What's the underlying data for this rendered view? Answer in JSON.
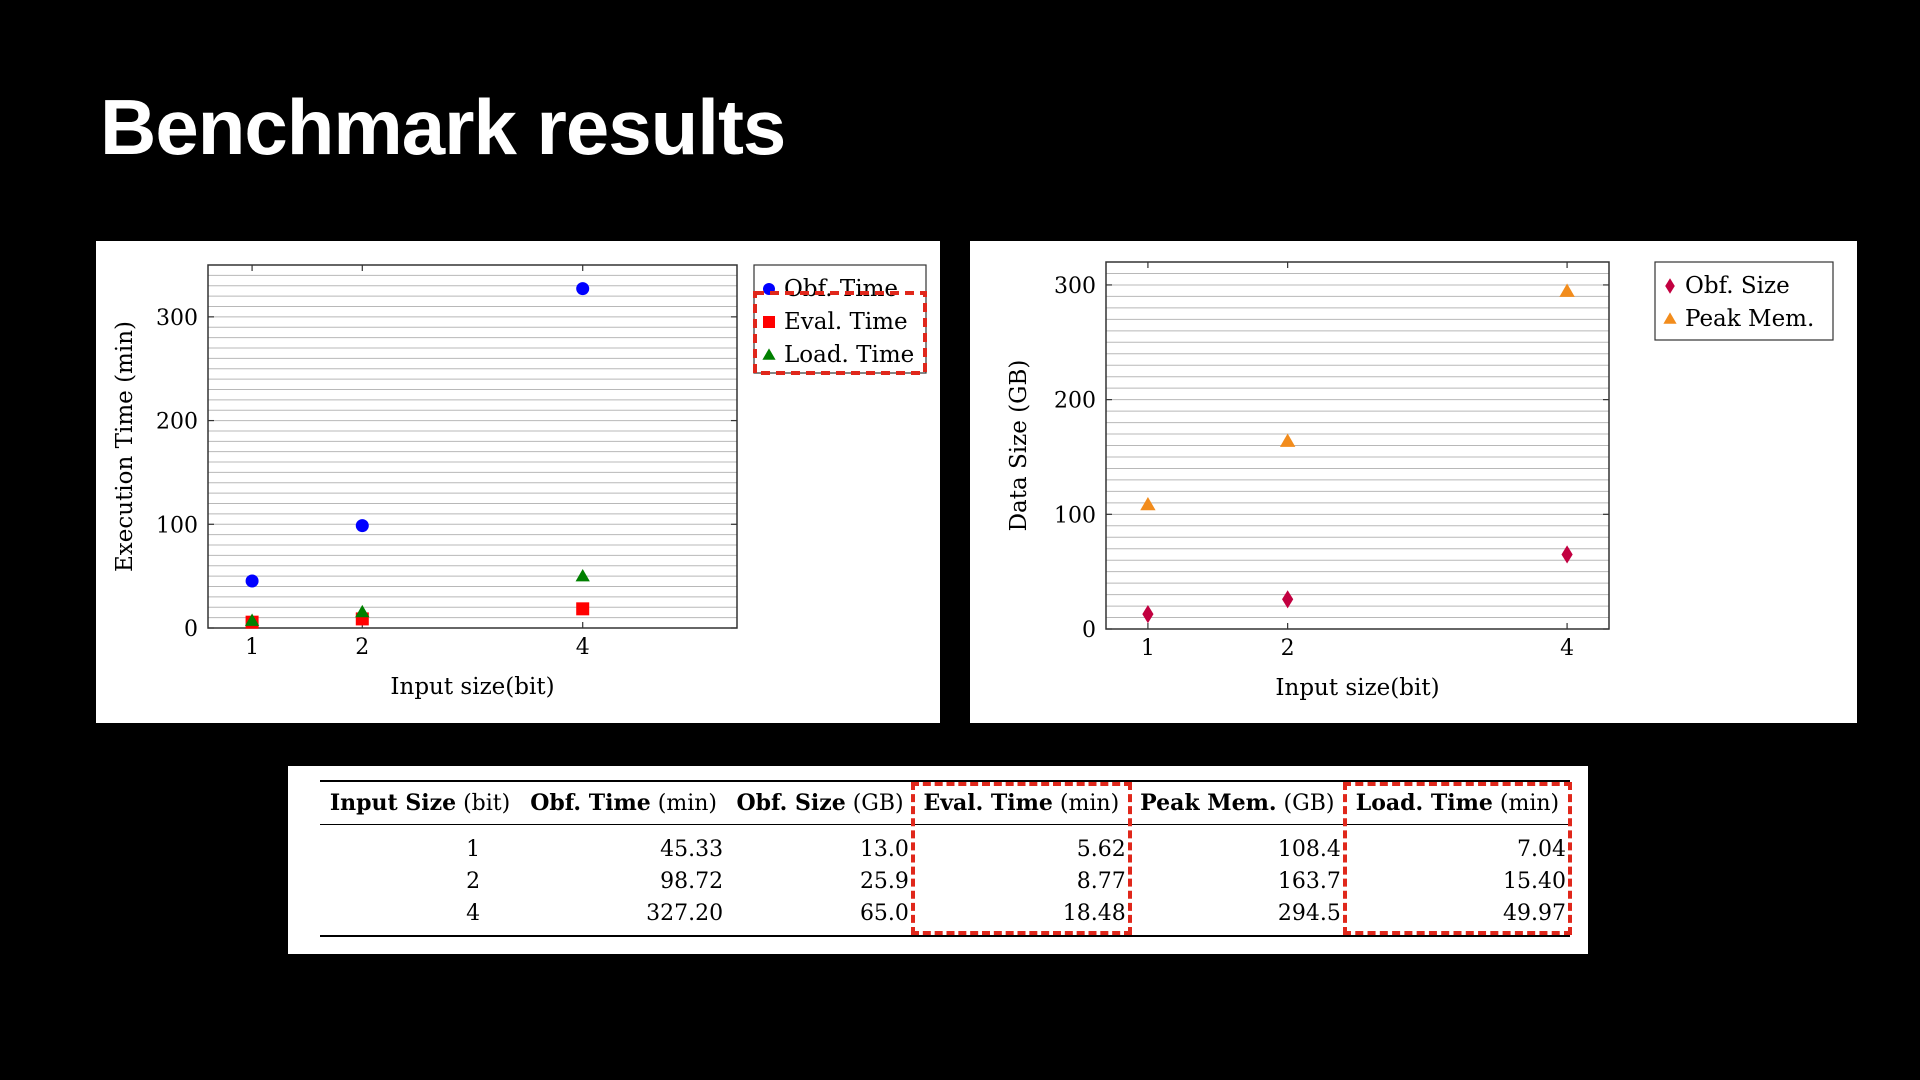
{
  "title": "Benchmark results",
  "colors": {
    "obf_time": "#0000ff",
    "eval_time": "#ff0000",
    "load_time": "#008000",
    "obf_size": "#c20040",
    "peak_mem": "#f28c1c",
    "highlight": "#e0271b"
  },
  "chart_data": [
    {
      "type": "scatter",
      "xlabel": "Input size(bit)",
      "ylabel": "Execution Time (min)",
      "x_ticks": [
        1,
        2,
        4
      ],
      "y_ticks": [
        0,
        100,
        200,
        300
      ],
      "xlim": [
        0.6,
        5.4
      ],
      "ylim": [
        0,
        350
      ],
      "grid": true,
      "legend_position": "outside-top-right",
      "series": [
        {
          "name": "Obf. Time",
          "marker": "circle",
          "color": "#0000ff",
          "x": [
            1,
            2,
            4
          ],
          "y": [
            45.33,
            98.72,
            327.2
          ]
        },
        {
          "name": "Eval. Time",
          "marker": "square",
          "color": "#ff0000",
          "x": [
            1,
            2,
            4
          ],
          "y": [
            5.62,
            8.77,
            18.48
          ]
        },
        {
          "name": "Load. Time",
          "marker": "triangle",
          "color": "#008000",
          "x": [
            1,
            2,
            4
          ],
          "y": [
            7.04,
            15.4,
            49.97
          ]
        }
      ]
    },
    {
      "type": "scatter",
      "xlabel": "Input size(bit)",
      "ylabel": "Data Size (GB)",
      "x_ticks": [
        1,
        2,
        4
      ],
      "y_ticks": [
        0,
        100,
        200,
        300
      ],
      "xlim": [
        0.7,
        4.3
      ],
      "ylim": [
        0,
        320
      ],
      "grid": true,
      "legend_position": "outside-top-right",
      "series": [
        {
          "name": "Obf. Size",
          "marker": "diamond",
          "color": "#c20040",
          "x": [
            1,
            2,
            4
          ],
          "y": [
            13.0,
            25.9,
            65.0
          ]
        },
        {
          "name": "Peak Mem.",
          "marker": "triangle",
          "color": "#f28c1c",
          "x": [
            1,
            2,
            4
          ],
          "y": [
            108.4,
            163.7,
            294.5
          ]
        }
      ]
    },
    {
      "type": "table",
      "columns": [
        {
          "name": "Input Size",
          "unit": "(bit)"
        },
        {
          "name": "Obf. Time",
          "unit": "(min)"
        },
        {
          "name": "Obf. Size",
          "unit": "(GB)"
        },
        {
          "name": "Eval. Time",
          "unit": "(min)"
        },
        {
          "name": "Peak Mem.",
          "unit": "(GB)"
        },
        {
          "name": "Load. Time",
          "unit": "(min)"
        }
      ],
      "rows": [
        [
          "1",
          "45.33",
          "13.0",
          "5.62",
          "108.4",
          "7.04"
        ],
        [
          "2",
          "98.72",
          "25.9",
          "8.77",
          "163.7",
          "15.40"
        ],
        [
          "4",
          "327.20",
          "65.0",
          "18.48",
          "294.5",
          "49.97"
        ]
      ]
    }
  ]
}
